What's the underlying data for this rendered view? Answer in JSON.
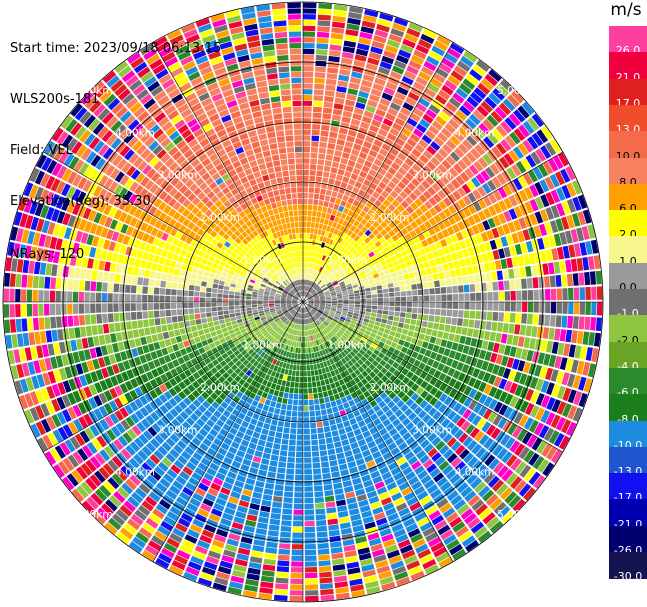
{
  "header": {
    "start_time": "Start time: 2023/09/18 06:13:15",
    "site": "WLS200s-181",
    "field": "Field: VEL",
    "elevation": "Elevation(deg): 35.30",
    "nrays": "NRays: 120"
  },
  "colorbar": {
    "unit": "m/s",
    "levels": [
      {
        "label": "26.0",
        "color": "#ff3fa0"
      },
      {
        "label": "21.0",
        "color": "#f0003c"
      },
      {
        "label": "17.0",
        "color": "#e0201e"
      },
      {
        "label": "13.0",
        "color": "#ef4d2c"
      },
      {
        "label": "10.0",
        "color": "#f56a4a"
      },
      {
        "label": "8.0",
        "color": "#f7805e"
      },
      {
        "label": "6.0",
        "color": "#ff9f00"
      },
      {
        "label": "2.0",
        "color": "#ffff00"
      },
      {
        "label": "1.0",
        "color": "#f6f68c"
      },
      {
        "label": "0.0",
        "color": "#9a9a9a"
      },
      {
        "label": "-1.0",
        "color": "#707070"
      },
      {
        "label": "-2.0",
        "color": "#8ec63f"
      },
      {
        "label": "-4.0",
        "color": "#6aa425"
      },
      {
        "label": "-6.0",
        "color": "#2b8a2b"
      },
      {
        "label": "-8.0",
        "color": "#1a7f1a"
      },
      {
        "label": "-10.0",
        "color": "#1d8be0"
      },
      {
        "label": "-13.0",
        "color": "#1f56d0"
      },
      {
        "label": "-17.0",
        "color": "#1010f0"
      },
      {
        "label": "-21.0",
        "color": "#0000b0"
      },
      {
        "label": "-26.0",
        "color": "#00006e"
      },
      {
        "label": "-30.0",
        "color": "#141450"
      }
    ]
  },
  "chart_data": {
    "type": "heatmap",
    "subtype": "ppi-polar",
    "field": "VEL",
    "unit": "m/s",
    "n_rays": 120,
    "elevation_deg": 35.3,
    "range_rings": [
      {
        "value": 1.0,
        "label": "1.00km"
      },
      {
        "value": 2.0,
        "label": "2.00km"
      },
      {
        "value": 3.0,
        "label": "3.00km"
      },
      {
        "value": 4.0,
        "label": "4.00km"
      },
      {
        "value": 5.0,
        "label": "5.00km"
      }
    ],
    "approx_velocity_by_sector": [
      {
        "sector": "north, 1-4 km",
        "value": 10.0
      },
      {
        "sector": "north-east/west, 0.5-2 km",
        "value": 2.0
      },
      {
        "sector": "east-west axis, 0-1.5 km",
        "value": 0.0
      },
      {
        "sector": "south-east/west, 0.5-2 km",
        "value": -4.0
      },
      {
        "sector": "south, 1-3 km",
        "value": -10.0
      },
      {
        "sector": "outer ring, >4 km",
        "value": "noise"
      }
    ]
  }
}
